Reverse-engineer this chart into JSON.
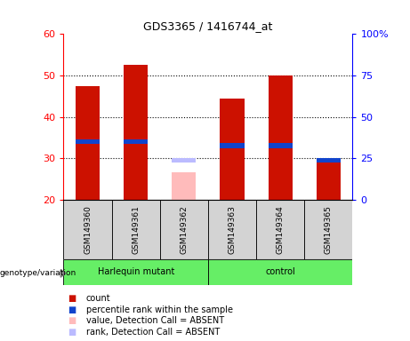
{
  "title": "GDS3365 / 1416744_at",
  "samples": [
    "GSM149360",
    "GSM149361",
    "GSM149362",
    "GSM149363",
    "GSM149364",
    "GSM149365"
  ],
  "count_values": [
    47.5,
    52.5,
    null,
    44.5,
    50.0,
    29.5
  ],
  "percentile_values": [
    34.0,
    34.0,
    null,
    33.0,
    33.0,
    29.5
  ],
  "absent_value": 26.5,
  "absent_rank": 29.5,
  "absent_sample_idx": 2,
  "ylim": [
    20,
    60
  ],
  "yticks_left": [
    20,
    30,
    40,
    50,
    60
  ],
  "yticks_right_pos": [
    20,
    30,
    40,
    50,
    60
  ],
  "yticks_right_labels": [
    "0",
    "25",
    "50",
    "75",
    "100%"
  ],
  "color_count": "#cc1100",
  "color_percentile": "#1144cc",
  "color_absent_value": "#ffbbbb",
  "color_absent_rank": "#bbbbff",
  "bar_bottom": 20,
  "grid_yticks": [
    30,
    40,
    50
  ],
  "bar_width": 0.5,
  "sample_box_color": "#d3d3d3",
  "group_row_color": "#66ee66",
  "legend_items": [
    {
      "label": "count",
      "color": "#cc1100"
    },
    {
      "label": "percentile rank within the sample",
      "color": "#1144cc"
    },
    {
      "label": "value, Detection Call = ABSENT",
      "color": "#ffbbbb"
    },
    {
      "label": "rank, Detection Call = ABSENT",
      "color": "#bbbbff"
    }
  ],
  "harlequin_samples": [
    0,
    1,
    2
  ],
  "control_samples": [
    3,
    4,
    5
  ]
}
